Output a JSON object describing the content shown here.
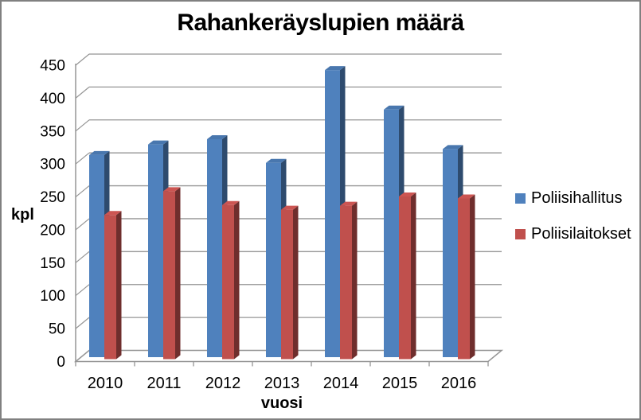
{
  "title": "Rahankeräyslupien määrä",
  "chart_data": {
    "type": "bar",
    "style": "3d-clustered-column",
    "title": "Rahankeräyslupien määrä",
    "categories": [
      "2010",
      "2011",
      "2012",
      "2013",
      "2014",
      "2015",
      "2016"
    ],
    "series": [
      {
        "name": "Poliisihallitus",
        "color": "#4F81BD",
        "values": [
          307,
          323,
          331,
          295,
          436,
          376,
          316
        ]
      },
      {
        "name": "Poliisilaitokset",
        "color": "#C0504D",
        "values": [
          219,
          255,
          234,
          227,
          233,
          247,
          244
        ]
      }
    ],
    "xlabel": "vuosi",
    "ylabel": "kpl",
    "ylim": [
      0,
      450
    ],
    "ytick_step": 50,
    "yticks": [
      "0",
      "50",
      "100",
      "150",
      "200",
      "250",
      "300",
      "350",
      "400",
      "450"
    ],
    "grid": true,
    "legend_position": "right",
    "gridline_color": "#959595",
    "axis_color": "#959595",
    "text_color": "#000000"
  }
}
